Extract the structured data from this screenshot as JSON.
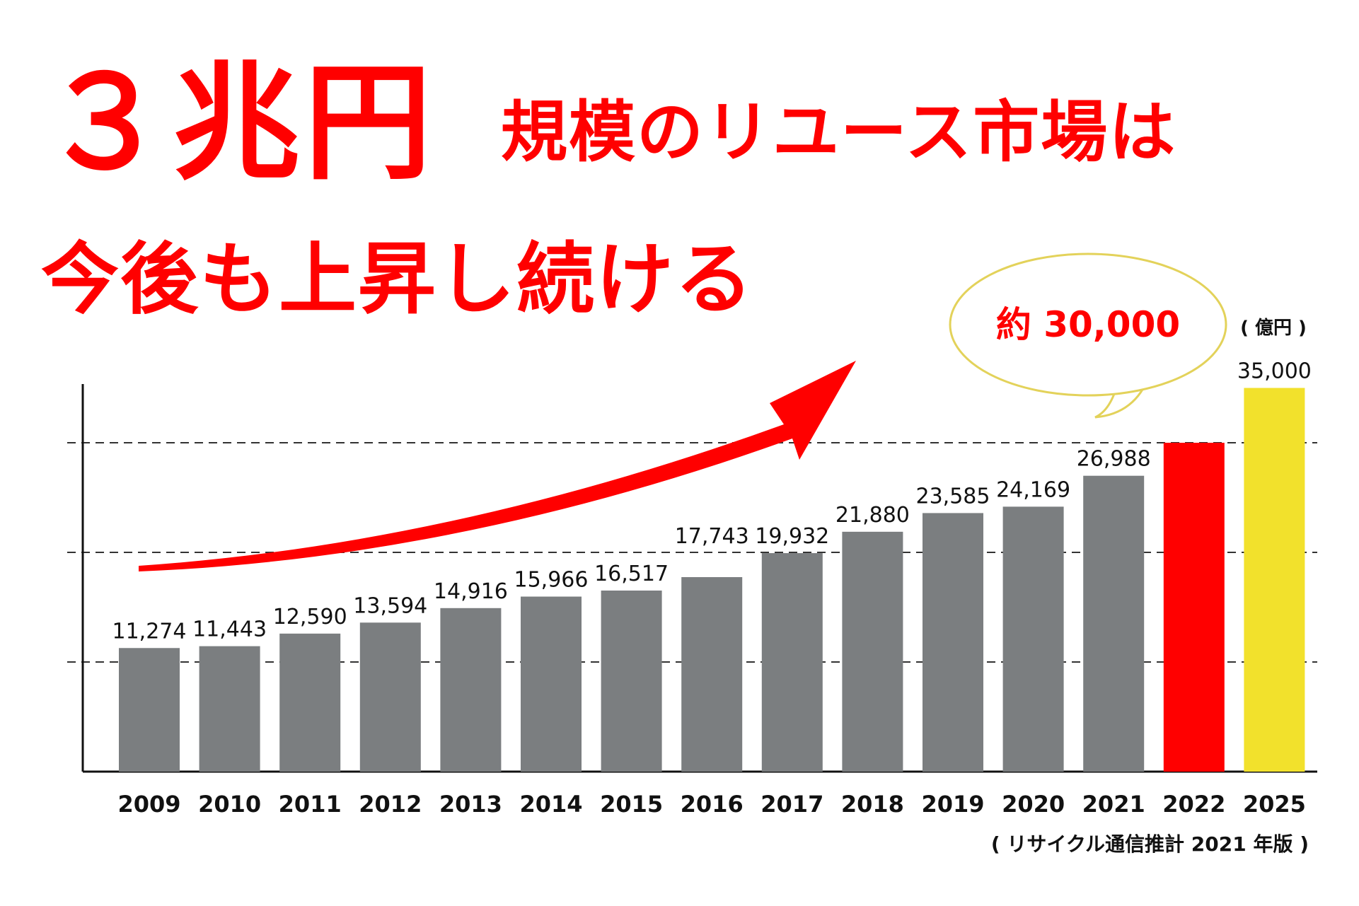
{
  "headline": {
    "amount": "３兆円",
    "rest": "規模のリユース市場は",
    "line2": "今後も上昇し続ける"
  },
  "callout": {
    "text": "約 30,000"
  },
  "unit": "( 億円 )",
  "source": "( リサイクル通信推計 2021 年版 )",
  "colors": {
    "headline": "#ff0000",
    "bar_default": "#7b7e80",
    "bar_2022": "#ff0000",
    "bar_2025": "#f2e12c",
    "arrow": "#ff0000",
    "callout_border": "#e3d25a"
  },
  "chart_data": {
    "type": "bar",
    "categories": [
      "2009",
      "2010",
      "2011",
      "2012",
      "2013",
      "2014",
      "2015",
      "2016",
      "2017",
      "2018",
      "2019",
      "2020",
      "2021",
      "2022",
      "2025"
    ],
    "values": [
      11274,
      11443,
      12590,
      13594,
      14916,
      15966,
      16517,
      17743,
      19932,
      21880,
      23585,
      24169,
      26988,
      30000,
      35000
    ],
    "value_labels": [
      "11,274",
      "11,443",
      "12,590",
      "13,594",
      "14,916",
      "15,966",
      "16,517",
      "17,743",
      "19,932",
      "21,880",
      "23,585",
      "24,169",
      "26,988",
      "",
      "35,000"
    ],
    "ylim": [
      0,
      36000
    ],
    "grid_lines": [
      10000,
      20000,
      30000
    ],
    "grid": true,
    "bar_colors": [
      "#7b7e80",
      "#7b7e80",
      "#7b7e80",
      "#7b7e80",
      "#7b7e80",
      "#7b7e80",
      "#7b7e80",
      "#7b7e80",
      "#7b7e80",
      "#7b7e80",
      "#7b7e80",
      "#7b7e80",
      "#7b7e80",
      "#ff0000",
      "#f2e12c"
    ]
  }
}
